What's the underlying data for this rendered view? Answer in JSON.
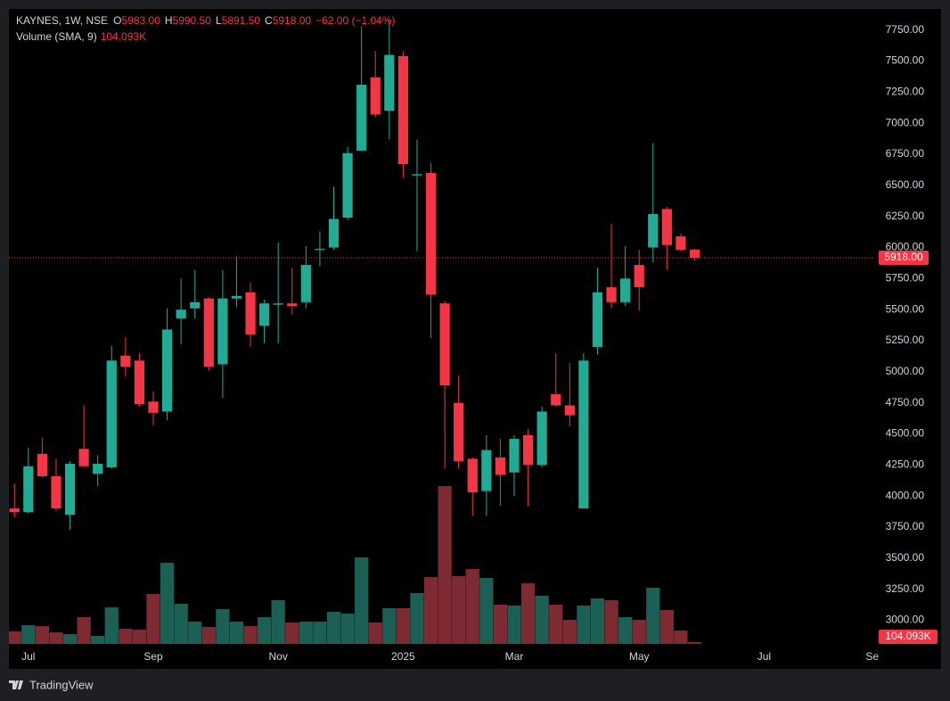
{
  "chart_data": {
    "type": "candlestick",
    "symbol": "KAYNES, 1W, NSE",
    "ohlc_legend": [
      {
        "label": "O",
        "value": "5983.00"
      },
      {
        "label": "H",
        "value": "5990.50"
      },
      {
        "label": "L",
        "value": "5891.50"
      },
      {
        "label": "C",
        "value": "5918.00"
      }
    ],
    "change": "−62.00 (−1.04%)",
    "volume_title": "Volume (SMA, 9)",
    "volume_sma": "104.093K",
    "last_price_label": "5918.00",
    "up_color": "#22ab94",
    "down_color": "#f23645",
    "volume_up_color": "#1c5f55",
    "volume_down_color": "#7e2a32",
    "open": [
      3900,
      3870,
      4340,
      4160,
      3850,
      4380,
      4180,
      4230,
      5130,
      5090,
      4760,
      4680,
      5430,
      5510,
      5590,
      5060,
      5590,
      5640,
      5370,
      5540,
      5550,
      5560,
      5980,
      6000,
      6240,
      6780,
      7370,
      7100,
      7540,
      6580,
      6600,
      5550,
      4750,
      4300,
      4040,
      4310,
      4190,
      4490,
      4250,
      4820,
      4730,
      3900,
      5200,
      5680,
      5560,
      5860,
      6000,
      6310,
      6090,
      5983
    ],
    "high": [
      4100,
      4390,
      4470,
      4300,
      4280,
      4730,
      4330,
      5210,
      5280,
      5150,
      4840,
      5510,
      5750,
      5820,
      5600,
      5820,
      5930,
      5720,
      5580,
      6040,
      5840,
      6010,
      6130,
      6490,
      6810,
      7780,
      7580,
      7830,
      7580,
      6870,
      6680,
      5570,
      4970,
      4310,
      4490,
      4460,
      4490,
      4540,
      4720,
      5150,
      5070,
      5150,
      5840,
      6190,
      6010,
      5980,
      6840,
      6330,
      6110,
      5990.5
    ],
    "low": [
      3830,
      3860,
      4150,
      3880,
      3730,
      4240,
      4080,
      4220,
      4960,
      4720,
      4570,
      4610,
      5220,
      5430,
      5010,
      4790,
      5520,
      5200,
      5230,
      5230,
      5460,
      5510,
      5850,
      5980,
      6220,
      6780,
      7050,
      6870,
      6560,
      5970,
      5270,
      4220,
      4220,
      3840,
      3840,
      3920,
      4000,
      3920,
      4230,
      4720,
      4560,
      3900,
      5140,
      5510,
      5530,
      5490,
      5880,
      5820,
      5970,
      5891.5
    ],
    "close": [
      3870,
      4240,
      4160,
      3900,
      4260,
      4240,
      4260,
      5090,
      5040,
      4740,
      4670,
      5340,
      5500,
      5560,
      5040,
      5590,
      5610,
      5300,
      5550,
      5550,
      5530,
      5860,
      5990,
      6230,
      6760,
      7310,
      7070,
      7550,
      6670,
      6590,
      5620,
      4890,
      4280,
      4030,
      4370,
      4170,
      4460,
      4250,
      4680,
      4730,
      4650,
      5090,
      5640,
      5560,
      5750,
      5680,
      6270,
      6020,
      5980,
      5918
    ],
    "volume": [
      41300,
      62000,
      59000,
      38400,
      32500,
      88500,
      26600,
      121000,
      50200,
      47200,
      165200,
      268500,
      132800,
      73800,
      56100,
      115100,
      73800,
      59000,
      88500,
      144600,
      70800,
      73800,
      73800,
      106200,
      100300,
      286200,
      70800,
      118000,
      118000,
      168200,
      221300,
      522200,
      224200,
      247800,
      218300,
      129800,
      126900,
      200600,
      159300,
      129800,
      79700,
      126900,
      150500,
      144600,
      88500,
      79700,
      185900,
      112100,
      44300,
      5900
    ],
    "xlim": [
      -0.4,
      62
    ],
    "xticks": [
      {
        "value": 1,
        "label": "Jul"
      },
      {
        "value": 10,
        "label": "Sep"
      },
      {
        "value": 19,
        "label": "Nov"
      },
      {
        "value": 28,
        "label": "2025"
      },
      {
        "value": 36,
        "label": "Mar"
      },
      {
        "value": 45,
        "label": "May"
      },
      {
        "value": 54,
        "label": "Jul"
      },
      {
        "value": 62,
        "label": "Sep"
      }
    ],
    "ylim": [
      2810,
      7920
    ],
    "yticks": [
      {
        "value": 3000,
        "label": "3000.00"
      },
      {
        "value": 3250,
        "label": "3250.00"
      },
      {
        "value": 3500,
        "label": "3500.00"
      },
      {
        "value": 3750,
        "label": "3750.00"
      },
      {
        "value": 4000,
        "label": "4000.00"
      },
      {
        "value": 4250,
        "label": "4250.00"
      },
      {
        "value": 4500,
        "label": "4500.00"
      },
      {
        "value": 4750,
        "label": "4750.00"
      },
      {
        "value": 5000,
        "label": "5000.00"
      },
      {
        "value": 5250,
        "label": "5250.00"
      },
      {
        "value": 5500,
        "label": "5500.00"
      },
      {
        "value": 5750,
        "label": "5750.00"
      },
      {
        "value": 6000,
        "label": "6000.00"
      },
      {
        "value": 6250,
        "label": "6250.00"
      },
      {
        "value": 6500,
        "label": "6500.00"
      },
      {
        "value": 6750,
        "label": "6750.00"
      },
      {
        "value": 7000,
        "label": "7000.00"
      },
      {
        "value": 7250,
        "label": "7250.00"
      },
      {
        "value": 7500,
        "label": "7500.00"
      },
      {
        "value": 7750,
        "label": "7750.00"
      }
    ],
    "brand": "TradingView"
  }
}
